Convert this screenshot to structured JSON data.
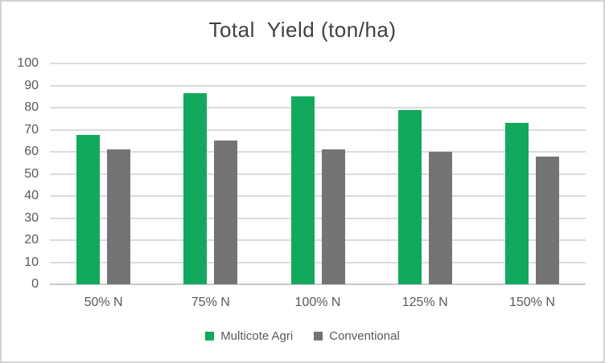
{
  "frame": {
    "background": "#ffffff",
    "border_color": "#d2d2d2"
  },
  "chart_data": {
    "type": "bar",
    "title": "Total  Yield (ton/ha)",
    "title_color": "#404040",
    "categories": [
      "50% N",
      "75% N",
      "100% N",
      "125% N",
      "150% N"
    ],
    "series": [
      {
        "name": "Multicote Agri",
        "color": "#12a95c",
        "values": [
          67.5,
          86.5,
          85,
          79,
          73
        ]
      },
      {
        "name": "Conventional",
        "color": "#747474",
        "values": [
          61,
          65,
          61,
          60,
          58
        ]
      }
    ],
    "xlabel": "",
    "ylabel": "",
    "ylim": [
      0,
      100
    ],
    "yticks": [
      100,
      90,
      80,
      70,
      60,
      50,
      40,
      30,
      20,
      10,
      0
    ],
    "grid": true,
    "gridline_color": "#dbdbdb",
    "axis_line_color": "#c9c9c9",
    "axis_text_color": "#595959",
    "legend_position": "bottom-center"
  }
}
